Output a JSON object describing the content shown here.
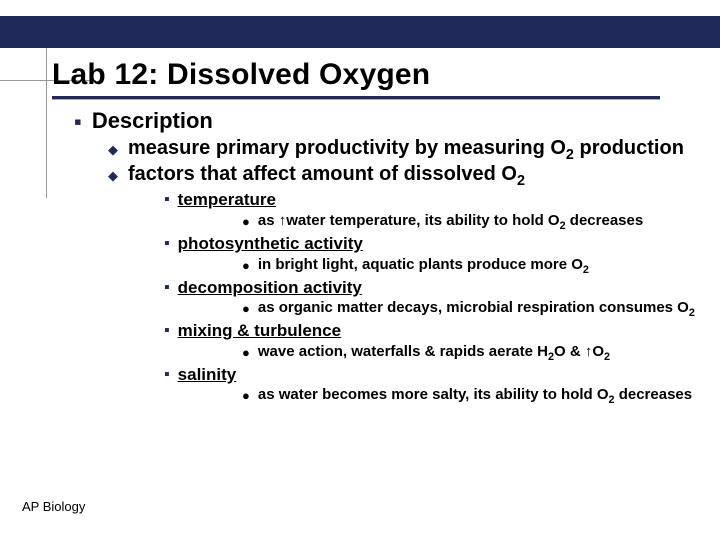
{
  "colors": {
    "navy": "#1f2a5a",
    "crosshair": "#999999",
    "text": "#000000",
    "background": "#ffffff"
  },
  "title": "Lab 12: Dissolved Oxygen",
  "footer": "AP Biology",
  "l1_heading": "Description",
  "l2_items": [
    "measure primary productivity by measuring O<sub>2</sub> production",
    "factors that affect amount of dissolved O<sub>2</sub>"
  ],
  "factors": [
    {
      "name": "temperature",
      "detail": "as <span class=\"arrow\">&#8593;</span>water temperature, its ability to hold O<sub>2</sub> decreases"
    },
    {
      "name": "photosynthetic activity",
      "detail": "in bright light, aquatic plants produce more O<sub>2</sub>"
    },
    {
      "name": "decomposition activity",
      "detail": "as organic matter decays, microbial respiration consumes O<sub>2</sub>"
    },
    {
      "name": "mixing & turbulence",
      "detail": "wave action, waterfalls & rapids aerate H<sub>2</sub>O & <span class=\"arrow\">&#8593;</span>O<sub>2</sub>"
    },
    {
      "name": "salinity",
      "detail": "as water becomes more salty, its ability to hold O<sub>2</sub> decreases"
    }
  ]
}
